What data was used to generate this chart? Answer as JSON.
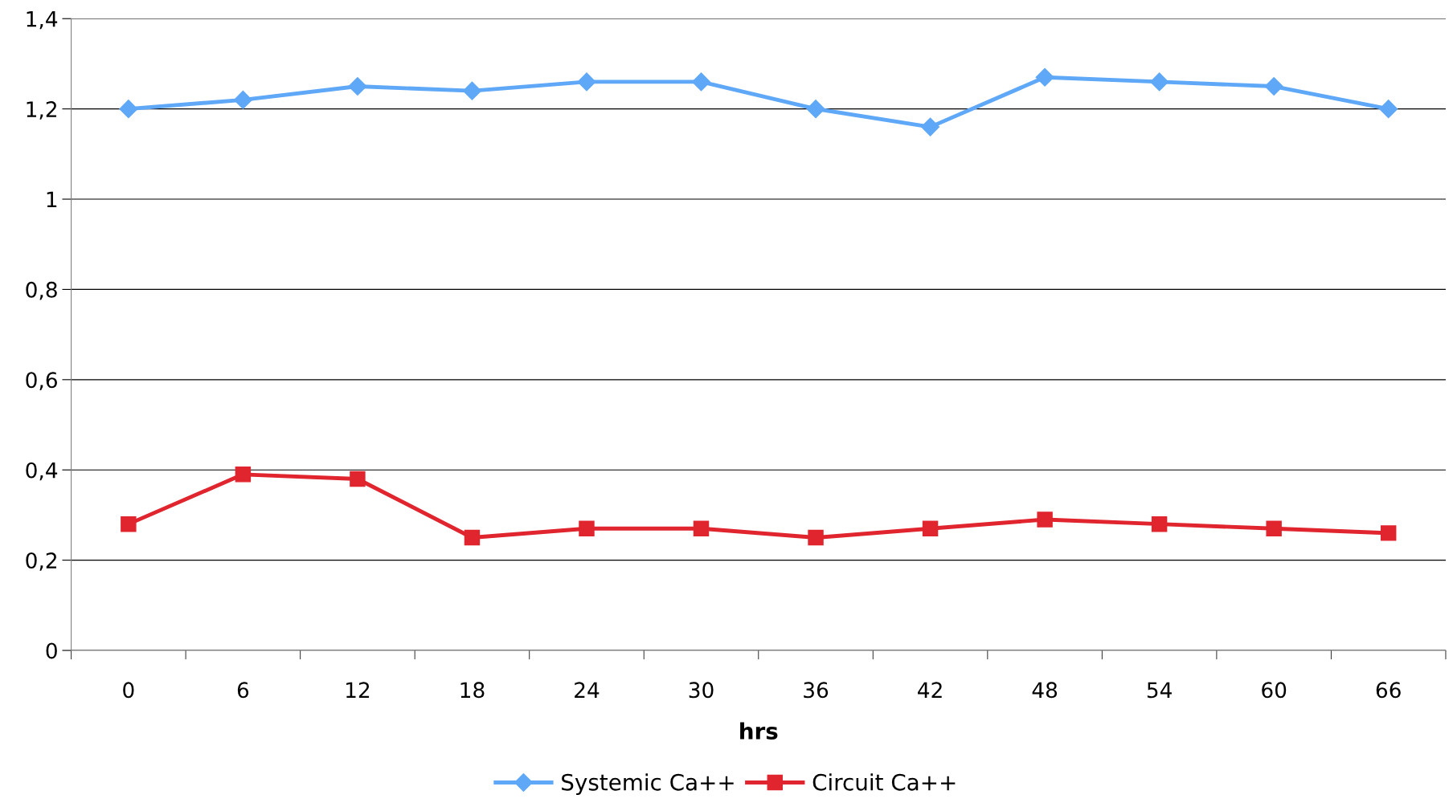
{
  "chart_data": {
    "type": "line",
    "xlabel": "hrs",
    "categories": [
      "0",
      "6",
      "12",
      "18",
      "24",
      "30",
      "36",
      "42",
      "48",
      "54",
      "60",
      "66"
    ],
    "series": [
      {
        "name": "Systemic Ca++",
        "color": "#5fa8f7",
        "marker": "diamond",
        "values": [
          1.2,
          1.22,
          1.25,
          1.24,
          1.26,
          1.26,
          1.2,
          1.16,
          1.27,
          1.26,
          1.25,
          1.2
        ]
      },
      {
        "name": "Circuit Ca++",
        "color": "#e0252f",
        "marker": "square",
        "values": [
          0.28,
          0.39,
          0.38,
          0.25,
          0.27,
          0.27,
          0.25,
          0.27,
          0.29,
          0.28,
          0.27,
          0.26
        ]
      }
    ],
    "ylim": [
      0,
      1.4
    ],
    "yticks": [
      0,
      {
        "value": 0.2,
        "label": "0,2"
      },
      {
        "value": 0.4,
        "label": "0,4"
      },
      {
        "value": 0.6,
        "label": "0,6"
      },
      {
        "value": 0.8,
        "label": "0,8"
      },
      1,
      {
        "value": 1.2,
        "label": "1,2"
      },
      {
        "value": 1.4,
        "label": "1,4"
      }
    ],
    "grid": "y",
    "legend": "bottom",
    "line_style": "solid"
  }
}
